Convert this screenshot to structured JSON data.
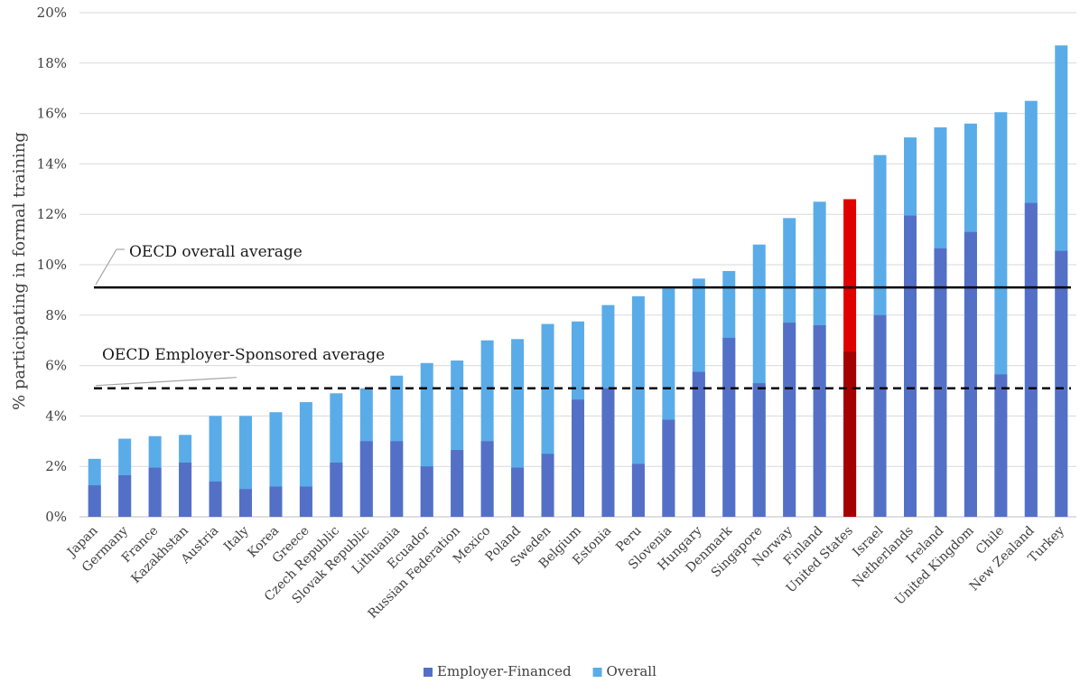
{
  "chart_data": {
    "type": "bar",
    "stacking": "overlay",
    "ylabel": "% participating in formal training",
    "xlabel": "",
    "ylim": [
      0,
      20
    ],
    "yticks": [
      "0%",
      "2%",
      "4%",
      "6%",
      "8%",
      "10%",
      "12%",
      "14%",
      "16%",
      "18%",
      "20%"
    ],
    "grid": true,
    "legend_position": "bottom",
    "categories": [
      "Japan",
      "Germany",
      "France",
      "Kazakhstan",
      "Austria",
      "Italy",
      "Korea",
      "Greece",
      "Czech Republic",
      "Slovak Republic",
      "Lithuania",
      "Ecuador",
      "Russian Federation",
      "Mexico",
      "Poland",
      "Sweden",
      "Belgium",
      "Estonia",
      "Peru",
      "Slovenia",
      "Hungary",
      "Denmark",
      "Singapore",
      "Norway",
      "Finland",
      "United States",
      "Israel",
      "Netherlands",
      "Ireland",
      "United Kingdom",
      "Chile",
      "New Zealand",
      "Turkey"
    ],
    "series": [
      {
        "name": "Employer-Financed",
        "color": "#5470c6",
        "values": [
          1.25,
          1.65,
          1.95,
          2.15,
          1.4,
          1.1,
          1.2,
          1.2,
          2.15,
          3.0,
          3.0,
          2.0,
          2.65,
          3.0,
          1.95,
          2.5,
          4.65,
          5.1,
          2.1,
          3.85,
          5.75,
          7.1,
          5.3,
          7.7,
          7.6,
          6.55,
          8.0,
          11.95,
          10.65,
          11.3,
          5.65,
          12.45,
          10.55
        ]
      },
      {
        "name": "Overall",
        "color": "#5aace8",
        "values": [
          2.3,
          3.1,
          3.2,
          3.25,
          4.0,
          4.0,
          4.15,
          4.55,
          4.9,
          5.1,
          5.6,
          6.1,
          6.2,
          7.0,
          7.05,
          7.65,
          7.75,
          8.4,
          8.75,
          9.05,
          9.45,
          9.75,
          10.8,
          11.85,
          12.5,
          12.6,
          14.35,
          15.05,
          15.45,
          15.6,
          16.05,
          16.5,
          18.7
        ]
      }
    ],
    "highlight": {
      "category": "United States",
      "employer_color": "#a50000",
      "overall_color": "#e00000"
    },
    "reference_lines": [
      {
        "label": "OECD overall average",
        "value": 9.1,
        "style": "solid",
        "color": "#000000"
      },
      {
        "label": "OECD Employer-Sponsored average",
        "value": 5.1,
        "style": "dashed",
        "color": "#000000"
      }
    ]
  }
}
